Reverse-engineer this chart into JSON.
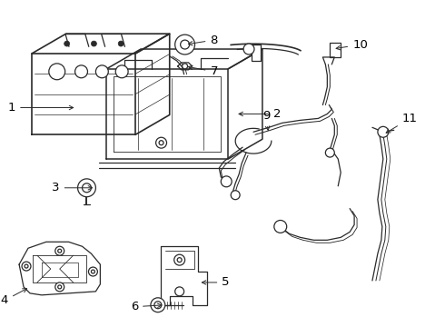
{
  "bg_color": "#ffffff",
  "line_color": "#2a2a2a",
  "lw": 0.9,
  "fig_width": 4.9,
  "fig_height": 3.6,
  "dpi": 100
}
